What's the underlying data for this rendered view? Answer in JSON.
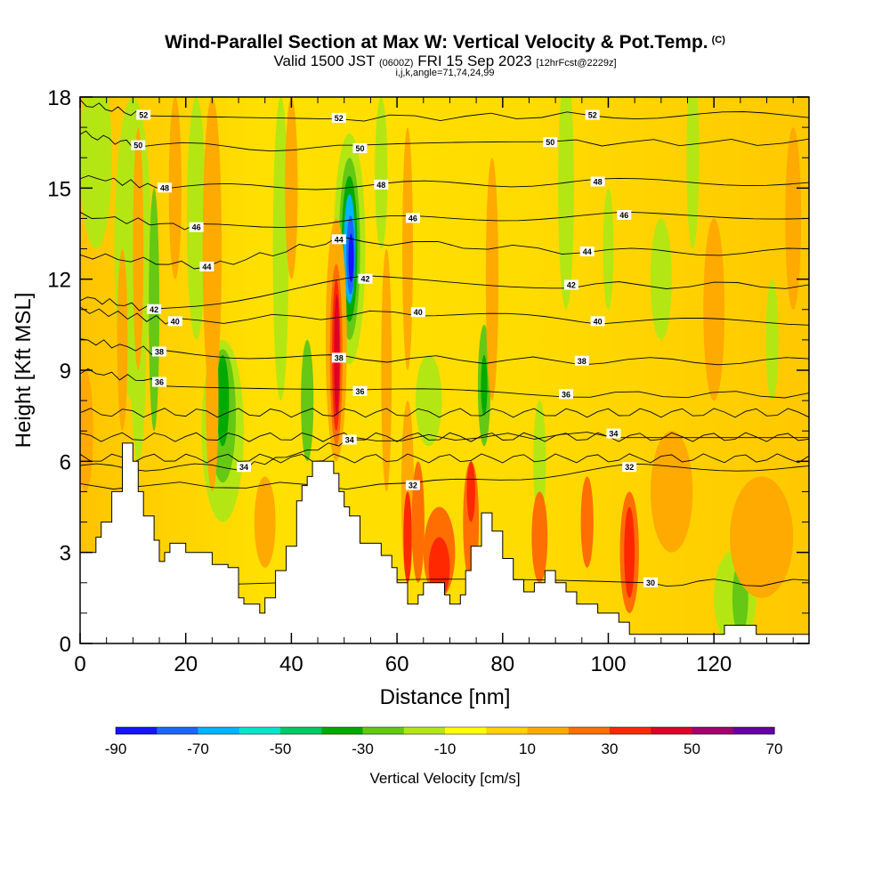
{
  "header": {
    "title": "Wind-Parallel Section at Max W: Vertical Velocity & Pot.Temp.",
    "copyright": "(C)",
    "valid_a": "Valid 1500 JST",
    "valid_zulu": "(0600Z)",
    "valid_b": "FRI 15 Sep 2023",
    "forecast": "[12hrFcst@2229z]",
    "params": "i,j,k,angle=71,74,24,99"
  },
  "chart_data": {
    "type": "heatmap",
    "title": "Wind-Parallel Section at Max W: Vertical Velocity & Pot.Temp.",
    "xlabel": "Distance [nm]",
    "ylabel": "Height [Kft MSL]",
    "xlim": [
      0,
      138
    ],
    "ylim": [
      0,
      18
    ],
    "x_ticks": [
      "0",
      "20",
      "40",
      "60",
      "80",
      "100",
      "120"
    ],
    "y_ticks": [
      "0",
      "3",
      "6",
      "9",
      "12",
      "15",
      "18"
    ],
    "colorbar": {
      "label": "Vertical Velocity [cm/s]",
      "tick_labels": [
        "-90",
        "-70",
        "-50",
        "-30",
        "-10",
        "10",
        "30",
        "50",
        "70"
      ],
      "bounds": [
        -90,
        70
      ],
      "colors": [
        "#1414ff",
        "#1e64ff",
        "#00b4ff",
        "#00e6c8",
        "#00c864",
        "#00aa00",
        "#64c814",
        "#b4e614",
        "#ffff00",
        "#ffd200",
        "#ffaa00",
        "#ff6e00",
        "#ff2800",
        "#dc0028",
        "#a0006e",
        "#6400a0"
      ]
    },
    "pot_temp_contour_labels": [
      {
        "value": "52",
        "x": 12,
        "y": 17.4
      },
      {
        "value": "52",
        "x": 49,
        "y": 17.3
      },
      {
        "value": "52",
        "x": 97,
        "y": 17.4
      },
      {
        "value": "50",
        "x": 11,
        "y": 16.4
      },
      {
        "value": "50",
        "x": 53,
        "y": 16.3
      },
      {
        "value": "50",
        "x": 89,
        "y": 16.5
      },
      {
        "value": "48",
        "x": 16,
        "y": 15.0
      },
      {
        "value": "48",
        "x": 57,
        "y": 15.1
      },
      {
        "value": "48",
        "x": 98,
        "y": 15.2
      },
      {
        "value": "46",
        "x": 22,
        "y": 13.7
      },
      {
        "value": "46",
        "x": 63,
        "y": 14.0
      },
      {
        "value": "46",
        "x": 103,
        "y": 14.1
      },
      {
        "value": "44",
        "x": 24,
        "y": 12.4
      },
      {
        "value": "44",
        "x": 49,
        "y": 13.3
      },
      {
        "value": "44",
        "x": 96,
        "y": 12.9
      },
      {
        "value": "42",
        "x": 14,
        "y": 11.0
      },
      {
        "value": "42",
        "x": 54,
        "y": 12.0
      },
      {
        "value": "42",
        "x": 93,
        "y": 11.8
      },
      {
        "value": "40",
        "x": 18,
        "y": 10.6
      },
      {
        "value": "40",
        "x": 64,
        "y": 10.9
      },
      {
        "value": "40",
        "x": 98,
        "y": 10.6
      },
      {
        "value": "38",
        "x": 15,
        "y": 9.6
      },
      {
        "value": "38",
        "x": 49,
        "y": 9.4
      },
      {
        "value": "38",
        "x": 95,
        "y": 9.3
      },
      {
        "value": "36",
        "x": 15,
        "y": 8.6
      },
      {
        "value": "36",
        "x": 53,
        "y": 8.3
      },
      {
        "value": "36",
        "x": 92,
        "y": 8.2
      },
      {
        "value": "34",
        "x": 31,
        "y": 5.8
      },
      {
        "value": "34",
        "x": 51,
        "y": 6.7
      },
      {
        "value": "34",
        "x": 101,
        "y": 6.9
      },
      {
        "value": "32",
        "x": 63,
        "y": 5.2
      },
      {
        "value": "32",
        "x": 104,
        "y": 5.8
      },
      {
        "value": "30",
        "x": 108,
        "y": 2.0
      }
    ],
    "terrain_profile": [
      [
        0,
        3.0
      ],
      [
        3,
        3.0
      ],
      [
        3,
        3.5
      ],
      [
        4,
        3.5
      ],
      [
        4,
        4.0
      ],
      [
        6,
        4.0
      ],
      [
        6,
        5.0
      ],
      [
        8,
        5.0
      ],
      [
        8,
        6.6
      ],
      [
        10,
        6.6
      ],
      [
        10,
        6.0
      ],
      [
        11,
        6.0
      ],
      [
        11,
        5.0
      ],
      [
        12,
        5.0
      ],
      [
        12,
        4.2
      ],
      [
        14,
        4.2
      ],
      [
        14,
        3.4
      ],
      [
        15,
        3.4
      ],
      [
        15,
        2.7
      ],
      [
        16,
        2.7
      ],
      [
        16,
        3.0
      ],
      [
        17,
        3.0
      ],
      [
        17,
        3.3
      ],
      [
        20,
        3.3
      ],
      [
        20,
        3.0
      ],
      [
        25,
        3.0
      ],
      [
        25,
        2.6
      ],
      [
        28,
        2.6
      ],
      [
        28,
        2.5
      ],
      [
        30,
        2.5
      ],
      [
        30,
        1.5
      ],
      [
        31,
        1.5
      ],
      [
        31,
        1.3
      ],
      [
        34,
        1.3
      ],
      [
        34,
        1.0
      ],
      [
        35,
        1.0
      ],
      [
        35,
        1.5
      ],
      [
        37,
        1.5
      ],
      [
        37,
        2.4
      ],
      [
        39,
        2.4
      ],
      [
        39,
        3.2
      ],
      [
        41,
        3.2
      ],
      [
        41,
        4.7
      ],
      [
        42,
        4.7
      ],
      [
        42,
        5.2
      ],
      [
        43,
        5.2
      ],
      [
        43,
        5.5
      ],
      [
        44,
        5.5
      ],
      [
        44,
        6.0
      ],
      [
        48,
        6.0
      ],
      [
        48,
        5.6
      ],
      [
        49,
        5.6
      ],
      [
        49,
        5.0
      ],
      [
        50,
        5.0
      ],
      [
        50,
        4.5
      ],
      [
        51,
        4.5
      ],
      [
        51,
        4.2
      ],
      [
        53,
        4.2
      ],
      [
        53,
        3.3
      ],
      [
        57,
        3.3
      ],
      [
        57,
        2.9
      ],
      [
        59,
        2.9
      ],
      [
        59,
        2.5
      ],
      [
        60,
        2.5
      ],
      [
        60,
        2.0
      ],
      [
        62,
        2.0
      ],
      [
        62,
        1.3
      ],
      [
        64,
        1.3
      ],
      [
        64,
        1.6
      ],
      [
        65,
        1.6
      ],
      [
        65,
        2.0
      ],
      [
        69,
        2.0
      ],
      [
        69,
        1.6
      ],
      [
        70,
        1.6
      ],
      [
        70,
        1.3
      ],
      [
        72,
        1.3
      ],
      [
        72,
        1.6
      ],
      [
        73,
        1.6
      ],
      [
        73,
        2.4
      ],
      [
        74,
        2.4
      ],
      [
        74,
        3.2
      ],
      [
        76,
        3.2
      ],
      [
        76,
        4.3
      ],
      [
        78,
        4.3
      ],
      [
        78,
        3.7
      ],
      [
        80,
        3.7
      ],
      [
        80,
        2.8
      ],
      [
        82,
        2.8
      ],
      [
        82,
        2.1
      ],
      [
        84,
        2.1
      ],
      [
        84,
        1.7
      ],
      [
        86,
        1.7
      ],
      [
        86,
        2.0
      ],
      [
        88,
        2.0
      ],
      [
        88,
        2.4
      ],
      [
        90,
        2.4
      ],
      [
        90,
        2.0
      ],
      [
        92,
        2.0
      ],
      [
        92,
        1.7
      ],
      [
        94,
        1.7
      ],
      [
        94,
        1.3
      ],
      [
        98,
        1.3
      ],
      [
        98,
        1.0
      ],
      [
        102,
        1.0
      ],
      [
        102,
        0.7
      ],
      [
        104,
        0.7
      ],
      [
        104,
        0.3
      ],
      [
        122,
        0.3
      ],
      [
        122,
        0.6
      ],
      [
        128,
        0.6
      ],
      [
        128,
        0.3
      ],
      [
        138,
        0.3
      ]
    ]
  }
}
